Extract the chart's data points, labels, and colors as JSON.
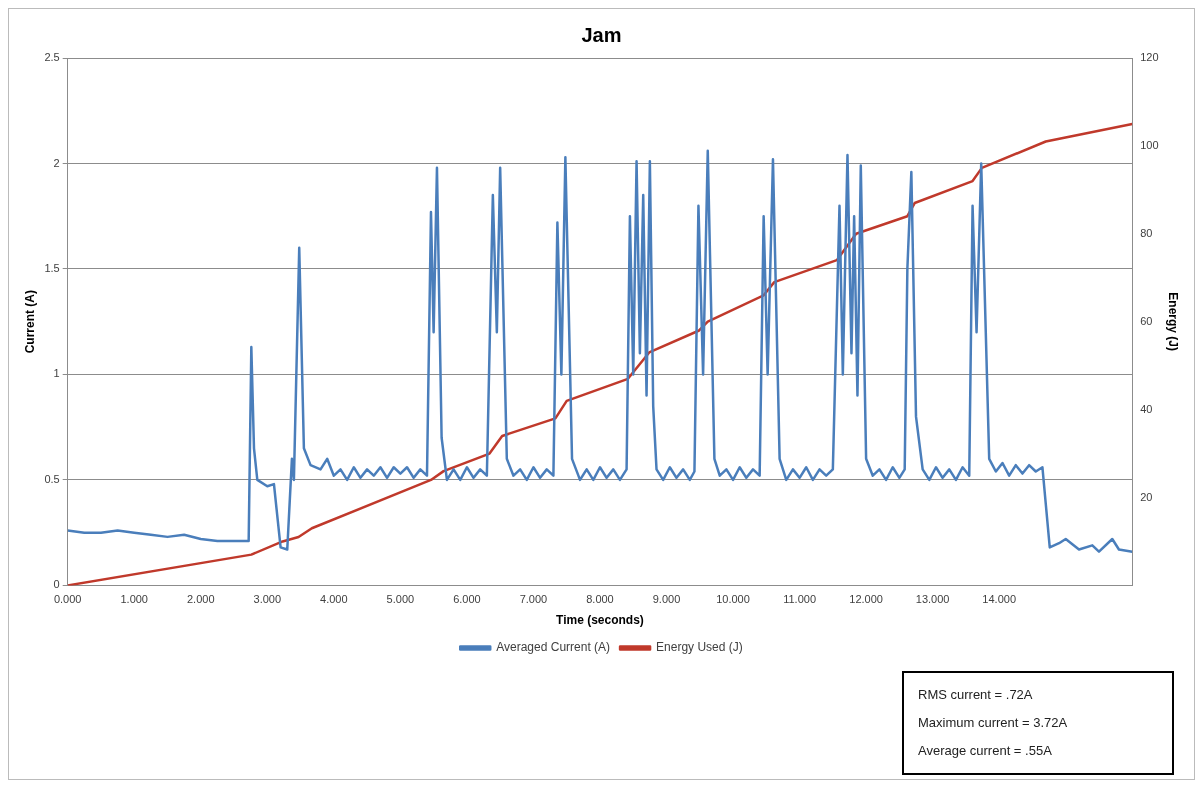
{
  "chart_data": {
    "type": "line",
    "title": "Jam",
    "xlabel": "Time (seconds)",
    "ylabel": "Current (A)",
    "y2label": "Energy (J)",
    "xlim": [
      0,
      16
    ],
    "xticks": [
      {
        "value": 0,
        "label": "0.000"
      },
      {
        "value": 1,
        "label": "1.000"
      },
      {
        "value": 2,
        "label": "2.000"
      },
      {
        "value": 3,
        "label": "3.000"
      },
      {
        "value": 4,
        "label": "4.000"
      },
      {
        "value": 5,
        "label": "5.000"
      },
      {
        "value": 6,
        "label": "6.000"
      },
      {
        "value": 7,
        "label": "7.000"
      },
      {
        "value": 8,
        "label": "8.000"
      },
      {
        "value": 9,
        "label": "9.000"
      },
      {
        "value": 10,
        "label": "10.000"
      },
      {
        "value": 11,
        "label": "11.000"
      },
      {
        "value": 12,
        "label": "12.000"
      },
      {
        "value": 13,
        "label": "13.000"
      },
      {
        "value": 14,
        "label": "14.000"
      }
    ],
    "ylim": [
      0,
      2.5
    ],
    "yticks": [
      0,
      0.5,
      1,
      1.5,
      2,
      2.5
    ],
    "y2lim": [
      0,
      120
    ],
    "y2ticks": [
      20,
      40,
      60,
      80,
      100,
      120
    ],
    "grid": "y",
    "legend": "bottom",
    "marker": "none",
    "line_style": "solid",
    "series": [
      {
        "name": "Averaged Current (A)",
        "color": "#4a7ebb",
        "x": [
          0,
          0.25,
          0.5,
          0.75,
          1,
          1.25,
          1.5,
          1.75,
          2,
          2.25,
          2.5,
          2.72,
          2.76,
          2.8,
          2.85,
          3,
          3.1,
          3.2,
          3.3,
          3.37,
          3.4,
          3.48,
          3.55,
          3.65,
          3.8,
          3.9,
          4,
          4.1,
          4.2,
          4.3,
          4.4,
          4.5,
          4.6,
          4.7,
          4.8,
          4.9,
          5,
          5.1,
          5.2,
          5.3,
          5.4,
          5.46,
          5.5,
          5.55,
          5.62,
          5.7,
          5.8,
          5.9,
          6,
          6.1,
          6.2,
          6.3,
          6.39,
          6.45,
          6.5,
          6.6,
          6.7,
          6.8,
          6.9,
          7,
          7.1,
          7.2,
          7.3,
          7.36,
          7.42,
          7.48,
          7.58,
          7.7,
          7.8,
          7.9,
          8,
          8.1,
          8.2,
          8.3,
          8.4,
          8.45,
          8.5,
          8.55,
          8.6,
          8.65,
          8.7,
          8.75,
          8.8,
          8.85,
          8.95,
          9.05,
          9.15,
          9.25,
          9.35,
          9.42,
          9.48,
          9.55,
          9.62,
          9.72,
          9.8,
          9.9,
          10,
          10.1,
          10.2,
          10.3,
          10.4,
          10.46,
          10.52,
          10.6,
          10.7,
          10.8,
          10.9,
          11,
          11.1,
          11.2,
          11.3,
          11.4,
          11.5,
          11.6,
          11.65,
          11.72,
          11.78,
          11.82,
          11.87,
          11.92,
          12,
          12.1,
          12.2,
          12.3,
          12.4,
          12.5,
          12.58,
          12.62,
          12.68,
          12.75,
          12.85,
          12.95,
          13.05,
          13.15,
          13.25,
          13.35,
          13.45,
          13.55,
          13.6,
          13.66,
          13.73,
          13.85,
          13.95,
          14.05,
          14.15,
          14.25,
          14.35,
          14.45,
          14.55,
          14.65,
          14.76,
          14.9,
          15,
          15.2,
          15.4,
          15.5,
          15.7,
          15.8,
          16
        ],
        "values": [
          0.26,
          0.25,
          0.25,
          0.26,
          0.25,
          0.24,
          0.23,
          0.24,
          0.22,
          0.21,
          0.21,
          0.21,
          1.13,
          0.65,
          0.5,
          0.47,
          0.48,
          0.18,
          0.17,
          0.6,
          0.5,
          1.6,
          0.65,
          0.57,
          0.55,
          0.6,
          0.52,
          0.55,
          0.5,
          0.56,
          0.51,
          0.55,
          0.52,
          0.56,
          0.51,
          0.56,
          0.53,
          0.56,
          0.51,
          0.55,
          0.52,
          1.77,
          1.2,
          1.98,
          0.7,
          0.5,
          0.55,
          0.5,
          0.56,
          0.51,
          0.55,
          0.52,
          1.85,
          1.2,
          1.98,
          0.6,
          0.52,
          0.55,
          0.5,
          0.56,
          0.51,
          0.55,
          0.52,
          1.72,
          1.0,
          2.03,
          0.6,
          0.5,
          0.55,
          0.5,
          0.56,
          0.51,
          0.55,
          0.5,
          0.55,
          1.75,
          1.0,
          2.01,
          1.1,
          1.85,
          0.9,
          2.01,
          0.85,
          0.55,
          0.5,
          0.56,
          0.51,
          0.55,
          0.5,
          0.54,
          1.8,
          1.0,
          2.06,
          0.6,
          0.52,
          0.55,
          0.5,
          0.56,
          0.51,
          0.55,
          0.52,
          1.75,
          1.0,
          2.02,
          0.6,
          0.5,
          0.55,
          0.51,
          0.56,
          0.5,
          0.55,
          0.52,
          0.55,
          1.8,
          1.0,
          2.04,
          1.1,
          1.75,
          0.9,
          1.99,
          0.6,
          0.52,
          0.55,
          0.5,
          0.56,
          0.51,
          0.55,
          1.5,
          1.96,
          0.8,
          0.55,
          0.5,
          0.56,
          0.51,
          0.55,
          0.5,
          0.56,
          0.52,
          1.8,
          1.2,
          2.0,
          0.6,
          0.54,
          0.58,
          0.52,
          0.57,
          0.53,
          0.57,
          0.54,
          0.56,
          0.18,
          0.2,
          0.22,
          0.17,
          0.19,
          0.16,
          0.22,
          0.17,
          0.16
        ]
      },
      {
        "name": "Energy Used (J)",
        "color": "#c0392b",
        "axis": "y2",
        "x": [
          0,
          2.76,
          3.23,
          3.47,
          3.67,
          5.46,
          5.65,
          6.34,
          6.53,
          7.33,
          7.5,
          8.42,
          8.74,
          9.49,
          9.62,
          10.46,
          10.62,
          11.56,
          11.85,
          12.62,
          12.73,
          13.6,
          13.74,
          14.7,
          16
        ],
        "values": [
          0,
          7,
          10,
          11,
          13,
          24,
          26,
          30,
          34,
          38,
          42,
          47,
          53,
          58,
          60,
          66,
          69,
          74,
          80,
          84,
          87,
          92,
          95,
          101,
          105
        ]
      }
    ],
    "annotations": [
      "RMS current = .72A",
      "Maximum current = 3.72A",
      "Average current = .55A"
    ]
  }
}
